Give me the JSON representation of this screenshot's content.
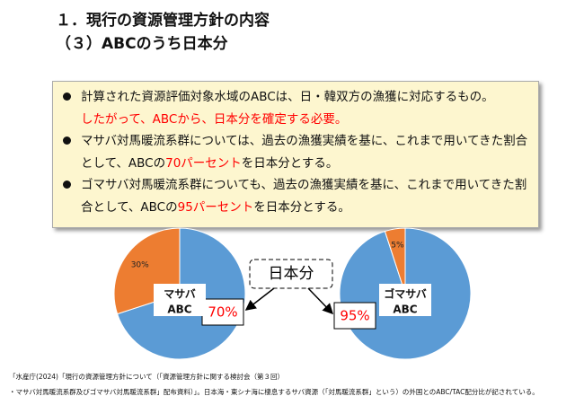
{
  "header": {
    "title": "１．現行の資源管理方針の内容",
    "subtitle": "（３）ABCのうち日本分"
  },
  "bullets": [
    [
      {
        "text": "計算された資源評価対象水域のABCは、日・韓双方の漁獲に対応するもの。"
      },
      {
        "text": "したがって、ABCから、日本分を確定する必要。",
        "color": "#ff0000",
        "newline": true
      }
    ],
    [
      {
        "text": "マサバ対馬暖流系群については、過去の漁獲実績を基に、これまで用いてきた割合として、ABCの"
      },
      {
        "text": "70パーセント",
        "color": "#ff0000"
      },
      {
        "text": "を日本分とする。"
      }
    ],
    [
      {
        "text": "ゴマサバ対馬暖流系群についても、過去の漁獲実績を基に、これまで用いてきた割合として、ABCの"
      },
      {
        "text": "95パーセント",
        "color": "#ff0000"
      },
      {
        "text": "を日本分とする。"
      }
    ]
  ],
  "center_label": "日本分",
  "chart_data": [
    {
      "type": "pie",
      "name_lines": [
        "マサバ",
        "ABC"
      ],
      "values": [
        70,
        30
      ],
      "value_labels": [
        "70%",
        "30%"
      ],
      "colors": [
        "#5b9bd5",
        "#ed7d31"
      ]
    },
    {
      "type": "pie",
      "name_lines": [
        "ゴマサバ",
        "ABC"
      ],
      "values": [
        95,
        5
      ],
      "value_labels": [
        "95%",
        "5%"
      ],
      "colors": [
        "#5b9bd5",
        "#ed7d31"
      ]
    }
  ],
  "source": [
    "「水産庁(2024)「現行の資源管理方針について（「資源管理方針に関する検討会（第３回）",
    "・マサバ対馬暖流系群及びゴマサバ対馬暖流系群」配布資料）」。日本海・東シナ海に棲息するサバ資源（「対馬暖流系群」という）の外国とのABC/TAC配分比が記されている。"
  ]
}
